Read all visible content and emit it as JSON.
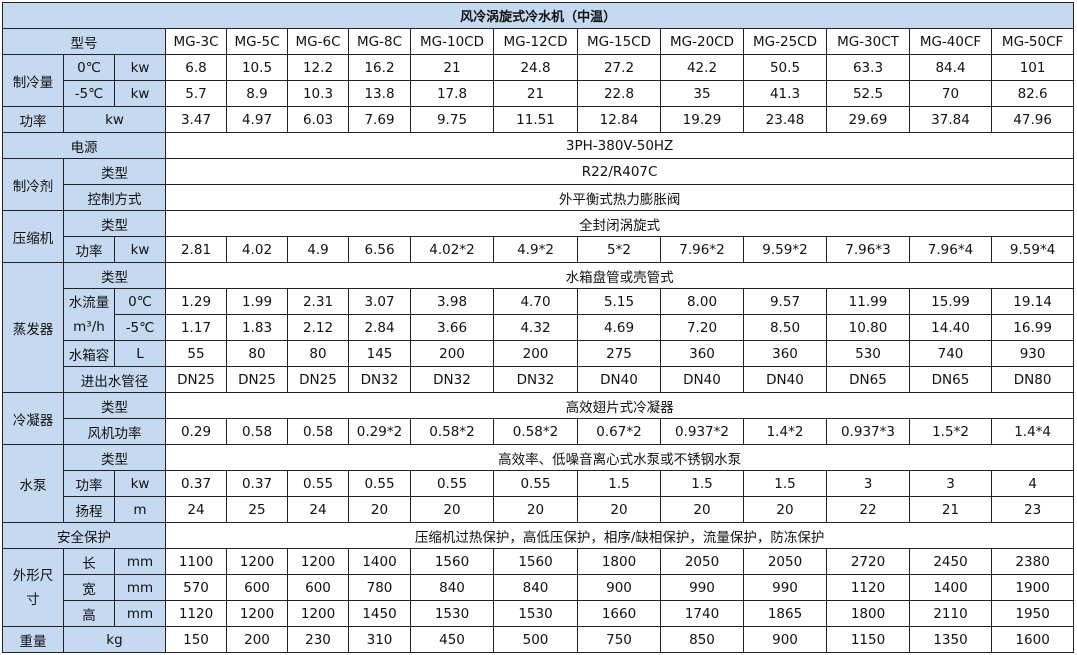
{
  "title": "风冷涡旋式冷水机（中温）",
  "header_bg": "#c5d9f1",
  "labels": {
    "model": "型号",
    "cooling": "制冷量",
    "t0": "0℃",
    "tm5": "-5℃",
    "kw": "kw",
    "power": "功率",
    "supply": "电源",
    "refrigerant": "制冷剂",
    "type": "类型",
    "control": "控制方式",
    "compressor": "压缩机",
    "evaporator": "蒸发器",
    "flow": "水流量",
    "flow_unit": "m³/h",
    "tank": "水箱容",
    "liter": "L",
    "pipe": "进出水管径",
    "condenser": "冷凝器",
    "fan_power": "风机功率",
    "pump": "水泵",
    "head": "扬程",
    "m": "m",
    "safety": "安全保护",
    "dimensions": "外形尺寸",
    "length": "长",
    "width": "宽",
    "height": "高",
    "mm": "mm",
    "weight": "重量",
    "kg": "kg"
  },
  "models": [
    "MG-3C",
    "MG-5C",
    "MG-6C",
    "MG-8C",
    "MG-10CD",
    "MG-12CD",
    "MG-15CD",
    "MG-20CD",
    "MG-25CD",
    "MG-30CT",
    "MG-40CF",
    "MG-50CF"
  ],
  "spans": {
    "supply": "3PH-380V-50HZ",
    "refrigerant_type": "R22/R407C",
    "control": "外平衡式热力膨胀阀",
    "compressor_type": "全封闭涡旋式",
    "evaporator_type": "水箱盘管或壳管式",
    "condenser_type": "高效翅片式冷凝器",
    "pump_type": "高效率、低噪音离心式水泵或不锈钢水泵",
    "safety": "压缩机过热保护，高低压保护，相序/缺相保护，流量保护，防冻保护"
  },
  "values": {
    "cooling_0": [
      "6.8",
      "10.5",
      "12.2",
      "16.2",
      "21",
      "24.8",
      "27.2",
      "42.2",
      "50.5",
      "63.3",
      "84.4",
      "101"
    ],
    "cooling_m5": [
      "5.7",
      "8.9",
      "10.3",
      "13.8",
      "17.8",
      "21",
      "22.8",
      "35",
      "41.3",
      "52.5",
      "70",
      "82.6"
    ],
    "power": [
      "3.47",
      "4.97",
      "6.03",
      "7.69",
      "9.75",
      "11.51",
      "12.84",
      "19.29",
      "23.48",
      "29.69",
      "37.84",
      "47.96"
    ],
    "compressor_power": [
      "2.81",
      "4.02",
      "4.9",
      "6.56",
      "4.02*2",
      "4.9*2",
      "5*2",
      "7.96*2",
      "9.59*2",
      "7.96*3",
      "7.96*4",
      "9.59*4"
    ],
    "flow_0": [
      "1.29",
      "1.99",
      "2.31",
      "3.07",
      "3.98",
      "4.70",
      "5.15",
      "8.00",
      "9.57",
      "11.99",
      "15.99",
      "19.14"
    ],
    "flow_m5": [
      "1.17",
      "1.83",
      "2.12",
      "2.84",
      "3.66",
      "4.32",
      "4.69",
      "7.20",
      "8.50",
      "10.80",
      "14.40",
      "16.99"
    ],
    "tank": [
      "55",
      "80",
      "80",
      "145",
      "200",
      "200",
      "275",
      "360",
      "360",
      "530",
      "740",
      "930"
    ],
    "pipe": [
      "DN25",
      "DN25",
      "DN25",
      "DN32",
      "DN32",
      "DN32",
      "DN40",
      "DN40",
      "DN40",
      "DN65",
      "DN65",
      "DN80"
    ],
    "fan_power": [
      "0.29",
      "0.58",
      "0.58",
      "0.29*2",
      "0.58*2",
      "0.58*2",
      "0.67*2",
      "0.937*2",
      "1.4*2",
      "0.937*3",
      "1.5*2",
      "1.4*4"
    ],
    "pump_power": [
      "0.37",
      "0.37",
      "0.55",
      "0.55",
      "0.55",
      "0.55",
      "1.5",
      "1.5",
      "1.5",
      "3",
      "3",
      "4"
    ],
    "pump_head": [
      "24",
      "25",
      "24",
      "20",
      "20",
      "20",
      "20",
      "20",
      "20",
      "22",
      "21",
      "23"
    ],
    "length": [
      "1100",
      "1200",
      "1200",
      "1400",
      "1560",
      "1560",
      "1800",
      "2050",
      "2050",
      "2720",
      "2450",
      "2380"
    ],
    "width": [
      "570",
      "600",
      "600",
      "780",
      "840",
      "840",
      "900",
      "990",
      "990",
      "1120",
      "1400",
      "1900"
    ],
    "height": [
      "1120",
      "1200",
      "1200",
      "1450",
      "1530",
      "1530",
      "1660",
      "1740",
      "1865",
      "1800",
      "2110",
      "1950"
    ],
    "weight": [
      "150",
      "200",
      "230",
      "310",
      "450",
      "500",
      "750",
      "850",
      "900",
      "1150",
      "1350",
      "1600"
    ]
  }
}
